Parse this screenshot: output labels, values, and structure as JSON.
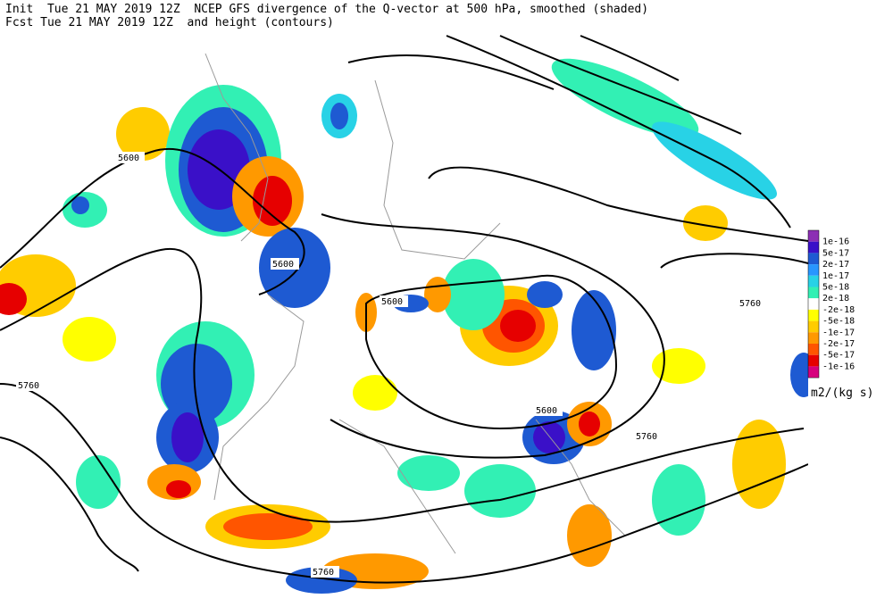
{
  "header": {
    "line1": "Init  Tue 21 MAY 2019 12Z  NCEP GFS divergence of the Q-vector at 500 hPa, smoothed (shaded)",
    "line2": "Fcst Tue 21 MAY 2019 12Z  and height (contours)"
  },
  "contour_labels": [
    "5600",
    "5600",
    "5600",
    "5600",
    "5760",
    "5760",
    "5760",
    "5760"
  ],
  "colorbar": {
    "labels": [
      "1e-16",
      "5e-17",
      "2e-17",
      "1e-17",
      "5e-18",
      "2e-18",
      "-2e-18",
      "-5e-18",
      "-1e-17",
      "-2e-17",
      "-5e-17",
      "-1e-16"
    ],
    "unit": "m2/(kg s)"
  }
}
